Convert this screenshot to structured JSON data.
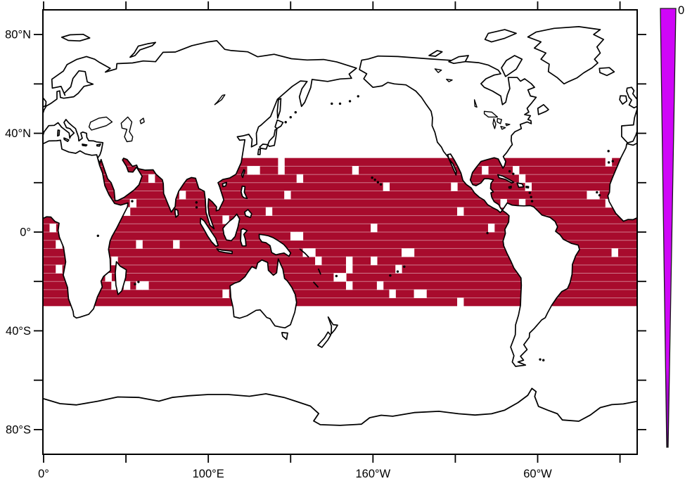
{
  "figure": {
    "kind": "lat-lon world map with gridded tropical data band and tapered colorbar",
    "background": "#ffffff",
    "frame_color": "#000000"
  },
  "axes": {
    "lon": {
      "range_deg_east": [
        0,
        360
      ],
      "tick_interval_deg": 50,
      "labels": [
        {
          "text": "0°",
          "lon": 0
        },
        {
          "text": "100°E",
          "lon": 100
        },
        {
          "text": "160°W",
          "lon": 200
        },
        {
          "text": "60°W",
          "lon": 300
        }
      ]
    },
    "lat": {
      "range": [
        -90,
        90
      ],
      "tick_interval_deg": 20,
      "labels": [
        {
          "text": "80°N",
          "lat": 80
        },
        {
          "text": "40°N",
          "lat": 40
        },
        {
          "text": "0°",
          "lat": 0
        },
        {
          "text": "40°S",
          "lat": -40
        },
        {
          "text": "80°S",
          "lat": -80
        }
      ]
    }
  },
  "colorbar": {
    "top_label": "0",
    "shape": "tapered-wedge",
    "top_color": "#CF06F7",
    "tip_color": "#140016"
  },
  "chart_data": {
    "type": "heatmap",
    "title": "",
    "description": "Equirectangular world map (0E-360E). Uniform dark-red cell-fill band over tropical oceans between 30N and 30S, drawn as a grid of cells with thin light row separators; white cells mark gaps near coasts, islands and scattered open-ocean points. Coastlines drawn in black on white. Tapered magenta colorbar at right with single label 0 at top.",
    "band": {
      "lat_max": 30,
      "lat_min": -30,
      "lon_min": 0,
      "lon_max": 360,
      "fill": "#A80B2D",
      "rows": 18,
      "cols": 96,
      "row_height_deg": 3.3333,
      "col_width_deg": 3.75,
      "row_separator_color": "rgba(255,255,255,0.45)"
    },
    "gap_cells_col_row": [
      [
        17,
        2
      ],
      [
        22,
        4
      ],
      [
        14,
        5
      ],
      [
        13,
        6
      ],
      [
        1,
        8
      ],
      [
        2,
        10
      ],
      [
        15,
        10
      ],
      [
        21,
        10
      ],
      [
        2,
        13
      ],
      [
        11,
        12
      ],
      [
        10,
        14
      ],
      [
        11,
        15
      ],
      [
        13,
        15
      ],
      [
        15,
        15
      ],
      [
        16,
        15
      ],
      [
        33,
        1
      ],
      [
        34,
        1
      ],
      [
        38,
        0
      ],
      [
        38,
        1
      ],
      [
        41,
        2
      ],
      [
        50,
        1
      ],
      [
        39,
        4
      ],
      [
        36,
        6
      ],
      [
        29,
        7
      ],
      [
        40,
        9
      ],
      [
        41,
        9
      ],
      [
        42,
        11
      ],
      [
        43,
        11
      ],
      [
        44,
        12
      ],
      [
        49,
        12
      ],
      [
        49,
        13
      ],
      [
        47,
        14
      ],
      [
        48,
        14
      ],
      [
        49,
        15
      ],
      [
        29,
        16
      ],
      [
        55,
        3
      ],
      [
        66,
        3
      ],
      [
        67,
        6
      ],
      [
        53,
        8
      ],
      [
        72,
        8
      ],
      [
        53,
        12
      ],
      [
        58,
        11
      ],
      [
        59,
        11
      ],
      [
        57,
        13
      ],
      [
        54,
        15
      ],
      [
        56,
        16
      ],
      [
        60,
        16
      ],
      [
        61,
        16
      ],
      [
        67,
        17
      ],
      [
        71,
        1
      ],
      [
        76,
        1
      ],
      [
        77,
        2
      ],
      [
        78,
        3
      ],
      [
        74,
        5
      ],
      [
        77,
        5
      ],
      [
        91,
        0
      ],
      [
        88,
        4
      ],
      [
        89,
        4
      ],
      [
        91,
        5
      ],
      [
        92,
        11
      ]
    ]
  }
}
